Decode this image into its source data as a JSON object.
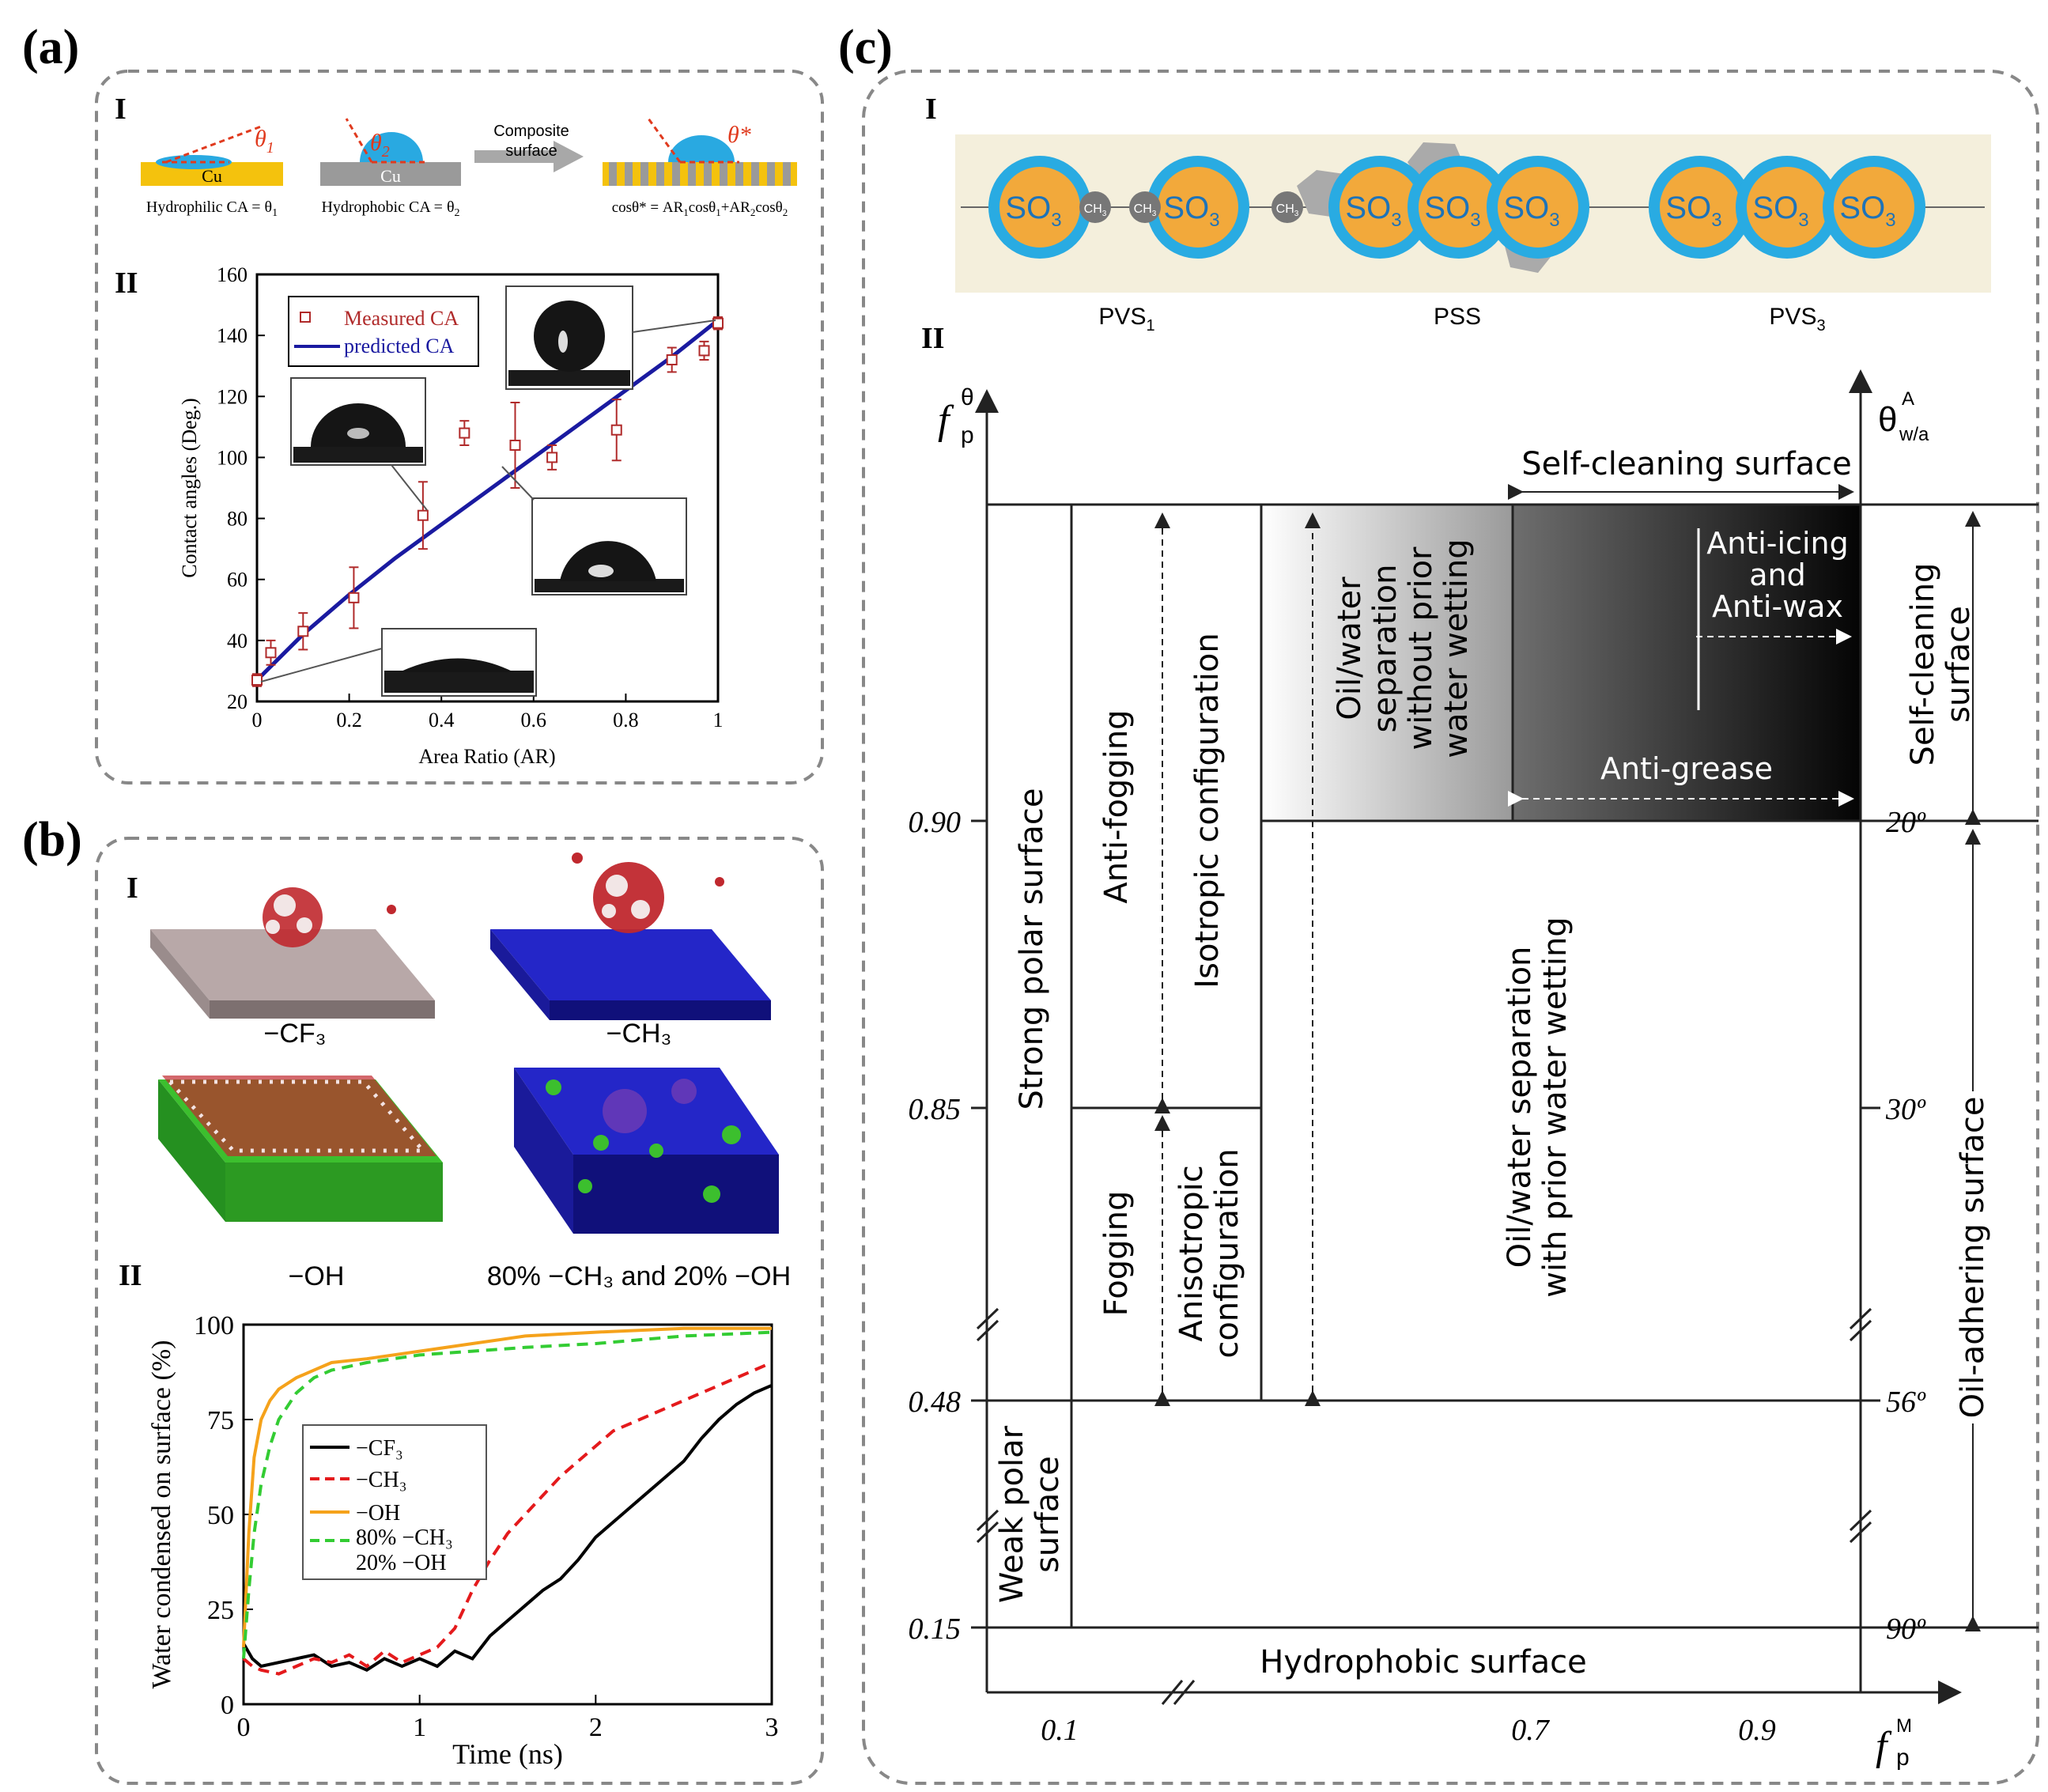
{
  "panel_labels": {
    "a": "(a)",
    "b": "(b)",
    "c": "(c)"
  },
  "sub_labels": {
    "I": "I",
    "II": "II"
  },
  "panel_a": {
    "I": {
      "cu_label": "Cu",
      "theta1": "θ",
      "theta1_sub": "1",
      "theta2": "θ",
      "theta2_sub": "2",
      "theta_star": "θ*",
      "hydrophilic_caption": "Hydrophilic CA = θ",
      "hydrophilic_caption_sub": "1",
      "hydrophobic_caption": "Hydrophobic CA = θ",
      "hydrophobic_caption_sub": "2",
      "arrow_label_line1": "Composite",
      "arrow_label_line2": "surface",
      "formula_pre": "cosθ* = AR",
      "formula_s1": "1",
      "formula_mid": "cosθ",
      "formula_s2": "1",
      "formula_plus": "+AR",
      "formula_s3": "2",
      "formula_cos2": "cosθ",
      "formula_s4": "2"
    },
    "colors": {
      "cu_hydrophilic": "#f4c20d",
      "cu_hydrophobic": "#9a9a9a",
      "drop": "#29a9e1",
      "contact_line": "#e03a1e",
      "measured": "#b02a2a",
      "predicted": "#1a1aa0"
    }
  },
  "chart_data": [
    {
      "type": "scatter",
      "title": "",
      "xlabel": "Area Ratio (AR)",
      "ylabel": "Contact angles (Deg.)",
      "xlim": [
        0,
        1
      ],
      "ylim": [
        20,
        160
      ],
      "xticks": [
        "0",
        "0.2",
        "0.4",
        "0.6",
        "0.8",
        "1"
      ],
      "yticks": [
        "20",
        "40",
        "60",
        "80",
        "100",
        "120",
        "140",
        "160"
      ],
      "legend": [
        "Measured CA",
        "predicted CA"
      ],
      "legend_position": "top-left",
      "series": [
        {
          "name": "Measured CA",
          "x": [
            0,
            0.03,
            0.1,
            0.21,
            0.36,
            0.45,
            0.56,
            0.64,
            0.78,
            0.9,
            0.97,
            1.0
          ],
          "y": [
            27,
            36,
            43,
            54,
            81,
            108,
            104,
            100,
            109,
            132,
            135,
            144
          ],
          "err": [
            2,
            4,
            6,
            10,
            11,
            4,
            14,
            4,
            10,
            4,
            3,
            2
          ]
        },
        {
          "name": "predicted CA",
          "x": [
            0,
            0.1,
            0.2,
            0.3,
            0.4,
            0.5,
            0.6,
            0.7,
            0.8,
            0.9,
            1.0
          ],
          "y": [
            27,
            42,
            55,
            67,
            78,
            89,
            100,
            111,
            122,
            133,
            145
          ]
        }
      ]
    },
    {
      "type": "line",
      "title": "",
      "xlabel": "Time (ns)",
      "ylabel": "Water condensed on surface (%)",
      "xlim": [
        0,
        3
      ],
      "ylim": [
        0,
        100
      ],
      "xticks": [
        "0",
        "1",
        "2",
        "3"
      ],
      "yticks": [
        "0",
        "25",
        "50",
        "75",
        "100"
      ],
      "legend_position": "center-left",
      "series": [
        {
          "name": "−CF₃",
          "color": "#000000",
          "dash": "",
          "x": [
            0,
            0.05,
            0.1,
            0.2,
            0.3,
            0.4,
            0.5,
            0.6,
            0.7,
            0.8,
            0.9,
            1.0,
            1.1,
            1.2,
            1.3,
            1.4,
            1.5,
            1.6,
            1.7,
            1.8,
            1.9,
            2.0,
            2.1,
            2.2,
            2.3,
            2.4,
            2.5,
            2.6,
            2.7,
            2.8,
            2.9,
            3.0
          ],
          "y": [
            16,
            12,
            10,
            11,
            12,
            13,
            10,
            11,
            9,
            12,
            10,
            12,
            10,
            14,
            12,
            18,
            22,
            26,
            30,
            33,
            38,
            44,
            48,
            52,
            56,
            60,
            64,
            70,
            75,
            79,
            82,
            84
          ]
        },
        {
          "name": "−CH₃",
          "color": "#e41a1c",
          "dash": "14,9",
          "x": [
            0,
            0.05,
            0.1,
            0.2,
            0.3,
            0.4,
            0.5,
            0.6,
            0.7,
            0.8,
            0.9,
            1.0,
            1.1,
            1.2,
            1.3,
            1.4,
            1.5,
            1.6,
            1.7,
            1.8,
            1.9,
            2.0,
            2.1,
            2.2,
            2.3,
            2.4,
            2.5,
            2.6,
            2.7,
            2.8,
            2.9,
            3.0
          ],
          "y": [
            12,
            10,
            9,
            8,
            10,
            12,
            11,
            13,
            10,
            14,
            11,
            13,
            15,
            20,
            30,
            38,
            45,
            50,
            55,
            60,
            64,
            68,
            72,
            74,
            76,
            78,
            80,
            82,
            84,
            86,
            88,
            90
          ]
        },
        {
          "name": "−OH",
          "color": "#f5a21b",
          "dash": "",
          "x": [
            0,
            0.03,
            0.06,
            0.1,
            0.15,
            0.2,
            0.3,
            0.4,
            0.5,
            0.7,
            1.0,
            1.3,
            1.6,
            2.0,
            2.5,
            3.0
          ],
          "y": [
            15,
            45,
            65,
            75,
            80,
            83,
            86,
            88,
            90,
            91,
            93,
            95,
            97,
            98,
            99,
            99
          ]
        },
        {
          "name": "80% −CH₃ 20% −OH",
          "color": "#33cc33",
          "dash": "14,9",
          "x": [
            0,
            0.03,
            0.06,
            0.1,
            0.15,
            0.2,
            0.3,
            0.4,
            0.5,
            0.7,
            1.0,
            1.3,
            1.6,
            2.0,
            2.5,
            3.0
          ],
          "y": [
            12,
            30,
            45,
            58,
            68,
            75,
            82,
            86,
            88,
            90,
            92,
            93,
            94,
            95,
            97,
            98
          ]
        }
      ]
    }
  ],
  "panel_b": {
    "I": {
      "captions": [
        "−CF₃",
        "−CH₃",
        "−OH",
        "80% −CH₃ and 20% −OH"
      ]
    },
    "II": {
      "legend": [
        "−CF₃",
        "−CH₃",
        "−OH",
        "80% −CH₃",
        "20% −OH"
      ]
    }
  },
  "panel_c": {
    "I": {
      "so3": "SO",
      "so3_sub": "3",
      "ch3": "CH",
      "ch3_sub": "3",
      "labels": [
        "PVS",
        "PSS",
        "PVS"
      ],
      "label_subs": [
        "1",
        "",
        "3"
      ]
    },
    "II": {
      "y_axis_left_symbol": "f",
      "y_axis_left_sup": "θ",
      "y_axis_left_sub": "p",
      "y_axis_right_symbol": "θ",
      "y_axis_right_sup": "A",
      "y_axis_right_sub": "w/a",
      "x_axis_symbol": "f",
      "x_axis_sup": "M",
      "x_axis_sub": "p",
      "left_ticks": [
        "0.90",
        "0.85",
        "0.48",
        "0.15"
      ],
      "right_ticks": [
        "20º",
        "30º",
        "56º",
        "90º"
      ],
      "bottom_ticks": [
        "0.1",
        "0.7",
        "0.9"
      ],
      "regions": {
        "strong_polar": "Strong polar surface",
        "weak_polar": [
          "Weak polar",
          "surface"
        ],
        "anti_fogging": "Anti-fogging",
        "fogging": "Fogging",
        "isotropic": "Isotropic configuration",
        "anisotropic": [
          "Anisotropic",
          "configuration"
        ],
        "oil_water_without": [
          "Oil/water",
          "separation",
          "without prior",
          "water wetting"
        ],
        "oil_water_with": [
          "Oil/water separation",
          "with prior water wetting"
        ],
        "self_cleaning_top": "Self-cleaning surface",
        "anti_icing": [
          "Anti-icing",
          "and",
          "Anti-wax"
        ],
        "anti_grease": "Anti-grease",
        "hydrophobic": "Hydrophobic surface",
        "self_cleaning_right": [
          "Self-cleaning",
          "surface"
        ],
        "oil_adhering": "Oil-adhering surface"
      },
      "colors": {
        "gradient_light": "#ffffff",
        "gradient_mid": "#8c8c8c",
        "gradient_dark": "#050505",
        "strip_bg": "#f4efdc",
        "ring": "#29abe2",
        "core": "#f2a93b"
      }
    }
  }
}
